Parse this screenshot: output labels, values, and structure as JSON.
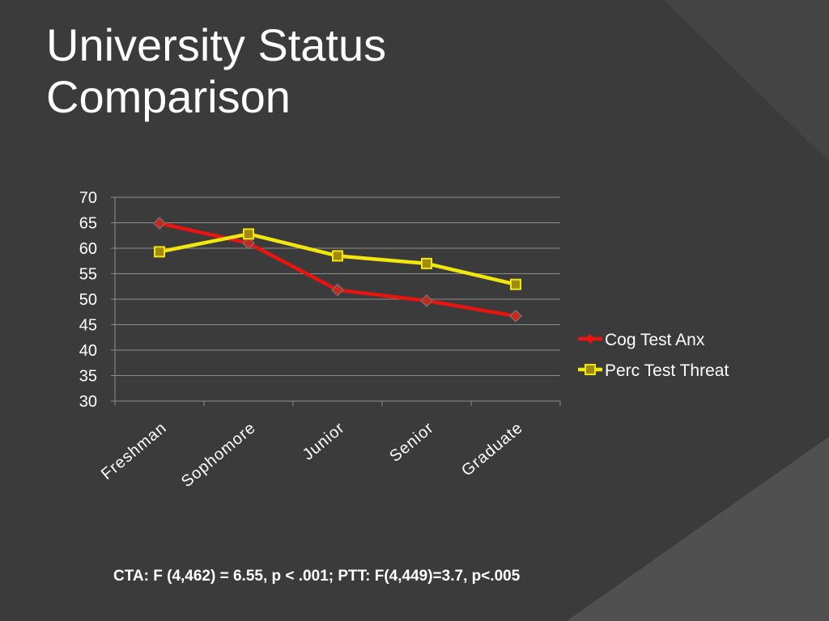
{
  "slide": {
    "title_line1": "University Status",
    "title_line2": "Comparison",
    "footnote": "CTA: F (4,462) = 6.55, p < .001; PTT: F(4,449)=3.7, p<.005"
  },
  "colors": {
    "background": "#3b3b3b",
    "series_red": "#e8140f",
    "series_yellow": "#f2e60f",
    "text": "#ffffff",
    "grid": "#8c8c8c"
  },
  "chart_data": {
    "type": "line",
    "categories": [
      "Freshman",
      "Sophomore",
      "Junior",
      "Senior",
      "Graduate"
    ],
    "ylim": [
      30,
      70
    ],
    "yticks": [
      "30",
      "35",
      "40",
      "45",
      "50",
      "55",
      "60",
      "65",
      "70"
    ],
    "grid": true,
    "legend_position": "right",
    "series": [
      {
        "name": "Cog Test Anx",
        "color": "#e8140f",
        "marker": "diamond",
        "values": [
          64.9,
          61.0,
          51.8,
          49.7,
          46.7
        ]
      },
      {
        "name": "Perc Test Threat",
        "color": "#f2e60f",
        "marker": "square",
        "values": [
          59.3,
          62.8,
          58.5,
          57.0,
          52.9
        ]
      }
    ]
  }
}
